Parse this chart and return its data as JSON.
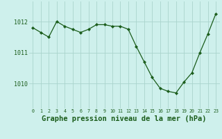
{
  "x": [
    0,
    1,
    2,
    3,
    4,
    5,
    6,
    7,
    8,
    9,
    10,
    11,
    12,
    13,
    14,
    15,
    16,
    17,
    18,
    19,
    20,
    21,
    22,
    23
  ],
  "y": [
    1011.8,
    1011.65,
    1011.5,
    1012.0,
    1011.85,
    1011.75,
    1011.65,
    1011.75,
    1011.9,
    1011.9,
    1011.85,
    1011.85,
    1011.75,
    1011.2,
    1010.7,
    1010.2,
    1009.85,
    1009.75,
    1009.7,
    1010.05,
    1010.35,
    1011.0,
    1011.6,
    1012.25
  ],
  "line_color": "#1a5c1a",
  "marker": "D",
  "marker_size": 2.2,
  "bg_color": "#cef0ec",
  "grid_color": "#aad4cc",
  "xlabel": "Graphe pression niveau de la mer (hPa)",
  "xlabel_fontsize": 7.5,
  "ytick_labels": [
    "1010",
    "1011",
    "1012"
  ],
  "ytick_vals": [
    1010,
    1011,
    1012
  ],
  "ylim": [
    1009.2,
    1012.65
  ],
  "xlim": [
    -0.5,
    23.5
  ],
  "xtick_labels": [
    "0",
    "1",
    "2",
    "3",
    "4",
    "5",
    "6",
    "7",
    "8",
    "9",
    "10",
    "11",
    "12",
    "13",
    "14",
    "15",
    "16",
    "17",
    "18",
    "19",
    "20",
    "21",
    "22",
    "23"
  ],
  "tick_color": "#1a5c1a",
  "axis_label_color": "#1a5c1a"
}
